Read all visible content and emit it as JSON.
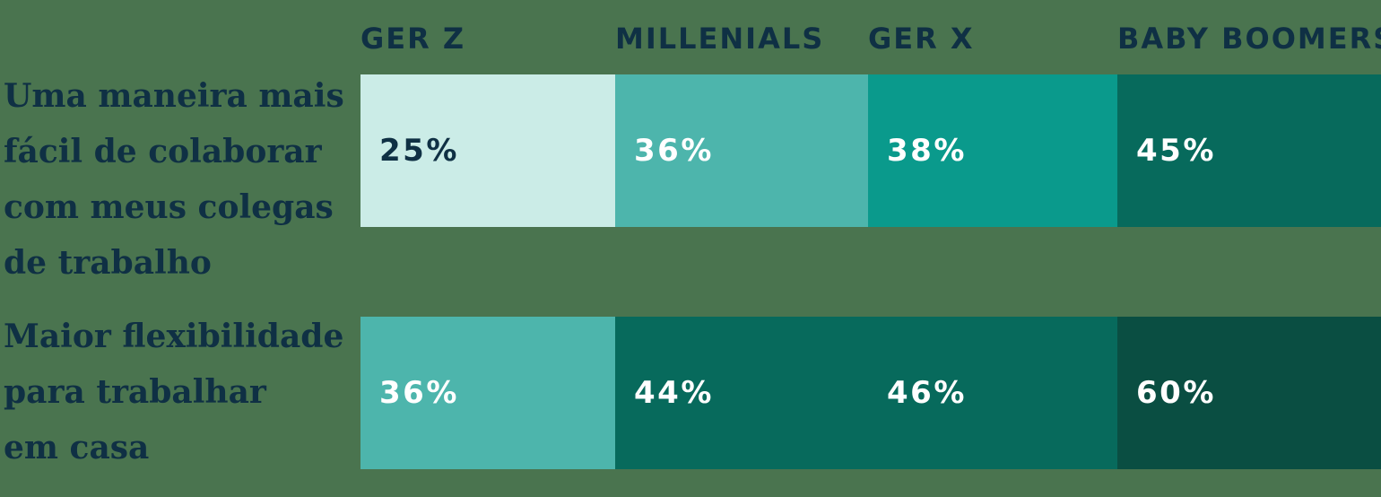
{
  "colors": {
    "background": "#4a744f",
    "navy_text": "#0f3044",
    "white_text": "#ffffff",
    "mint": "#cbece7",
    "teal": "#4db5ac",
    "medium_teal": "#0a9a8c",
    "dark_green": "#076a5c",
    "darkest_green": "#0a4e42"
  },
  "columns": [
    {
      "label": "GER Z"
    },
    {
      "label": "MILLENIALS"
    },
    {
      "label": "GER X"
    },
    {
      "label": "BABY BOOMERS"
    }
  ],
  "rows": [
    {
      "label": "Uma maneira mais fácil de colaborar com meus colegas de trabalho",
      "label_lines": [
        "Uma maneira mais",
        "fácil de colaborar",
        "com meus colegas",
        "de trabalho"
      ],
      "cells": [
        {
          "value": "25%",
          "style": "background:#cbece7;color:#0f3044"
        },
        {
          "value": "36%",
          "style": "background:#4db5ac;color:#ffffff"
        },
        {
          "value": "38%",
          "style": "background:#0a9a8c;color:#ffffff"
        },
        {
          "value": "45%",
          "style": "background:#076a5c;color:#ffffff"
        }
      ]
    },
    {
      "label": "Maior flexibilidade para trabalhar em casa",
      "label_lines": [
        "Maior flexibilidade",
        "para trabalhar",
        "em casa"
      ],
      "cells": [
        {
          "value": "36%",
          "style": "background:#4db5ac;color:#ffffff"
        },
        {
          "value": "44%",
          "style": "background:#076a5c;color:#ffffff"
        },
        {
          "value": "46%",
          "style": "background:#076a5c;color:#ffffff"
        },
        {
          "value": "60%",
          "style": "background:#0a4e42;color:#ffffff"
        }
      ]
    }
  ],
  "chart_data": {
    "type": "heatmap",
    "categories": [
      "GER Z",
      "MILLENIALS",
      "GER X",
      "BABY BOOMERS"
    ],
    "series": [
      {
        "name": "Uma maneira mais fácil de colaborar com meus colegas de trabalho",
        "values": [
          25,
          36,
          38,
          45
        ]
      },
      {
        "name": "Maior flexibilidade para trabalhar em casa",
        "values": [
          36,
          44,
          46,
          60
        ]
      }
    ],
    "value_unit": "%",
    "title": "",
    "xlabel": "",
    "ylabel": "",
    "legend_position": "none",
    "layout_hints": "Equal-width cells per generation column; darker teal fill encodes higher percentage; value labels inside cells"
  }
}
